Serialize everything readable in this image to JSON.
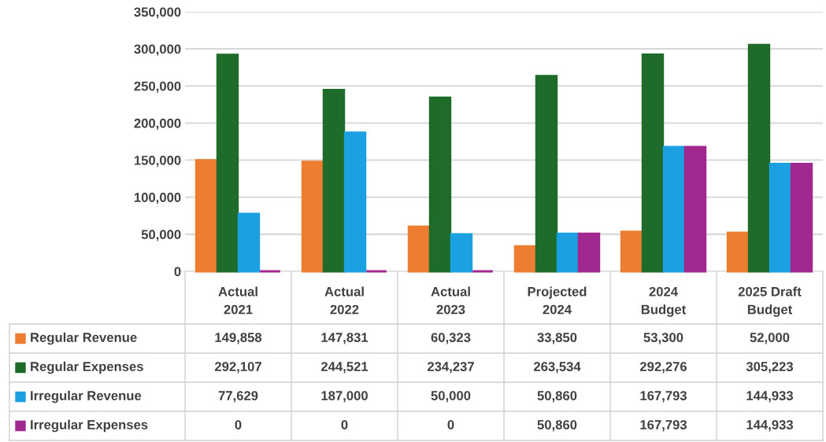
{
  "chart_data": {
    "type": "bar",
    "categories": [
      "Actual\n2021",
      "Actual\n2022",
      "Actual\n2023",
      "Projected\n2024",
      "2024\nBudget",
      "2025 Draft\nBudget"
    ],
    "series": [
      {
        "name": "Regular Revenue",
        "color": "#ed7d31",
        "values": [
          149858,
          147831,
          60323,
          33850,
          53300,
          52000
        ],
        "value_labels": [
          "149,858",
          "147,831",
          "60,323",
          "33,850",
          "53,300",
          "52,000"
        ]
      },
      {
        "name": "Regular Expenses",
        "color": "#1e6b2a",
        "values": [
          292107,
          244521,
          234237,
          263534,
          292276,
          305223
        ],
        "value_labels": [
          "292,107",
          "244,521",
          "234,237",
          "263,534",
          "292,276",
          "305,223"
        ]
      },
      {
        "name": "Irregular Revenue",
        "color": "#1ba1e2",
        "values": [
          77629,
          187000,
          50000,
          50860,
          167793,
          144933
        ],
        "value_labels": [
          "77,629",
          "187,000",
          "50,000",
          "50,860",
          "167,793",
          "144,933"
        ]
      },
      {
        "name": "Irregular Expenses",
        "color": "#a0288f",
        "values": [
          0,
          0,
          0,
          50860,
          167793,
          144933
        ],
        "value_labels": [
          "0",
          "0",
          "0",
          "50,860",
          "167,793",
          "144,933"
        ]
      }
    ],
    "ylim": [
      0,
      350000
    ],
    "yticks": [
      0,
      {
        "value": 50000,
        "label": "50,000"
      },
      {
        "value": 100000,
        "label": "100,000"
      },
      {
        "value": 150000,
        "label": "150,000"
      },
      {
        "value": 200000,
        "label": "200,000"
      },
      {
        "value": 250000,
        "label": "250,000"
      },
      {
        "value": 300000,
        "label": "300,000"
      },
      {
        "value": 350000,
        "label": "350,000"
      }
    ],
    "grid": "y",
    "legend": "bottom"
  }
}
